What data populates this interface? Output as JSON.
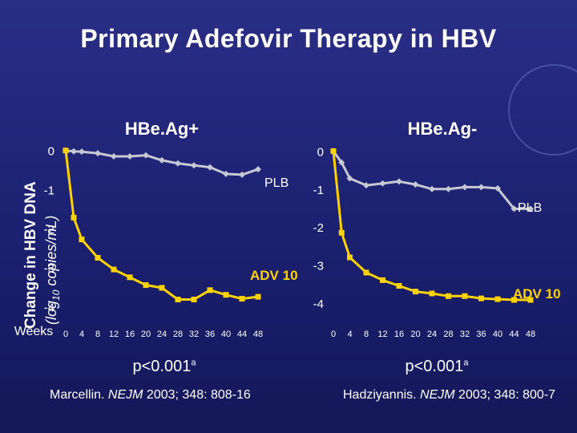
{
  "slide": {
    "title": "Primary Adefovir Therapy in HBV",
    "ylabel_main": "Change in HBV DNA",
    "ylabel_units": "(log",
    "ylabel_units_sub": "10",
    "ylabel_units_tail": " copies/mL)",
    "weeks_label": "Weeks",
    "colors": {
      "background": "#1b2070",
      "plb": "#c8c8d2",
      "adv": "#ffd200",
      "text": "#ffffff"
    }
  },
  "left": {
    "caption": "p<0.001",
    "caption_sup": "a",
    "citation_pre": "Marcellin. ",
    "citation_journal": "NEJM",
    "citation_post": " 2003; 348: 808-16"
  },
  "right": {
    "caption": "p<0.001",
    "caption_sup": "a",
    "citation_pre": "Hadziyannis. ",
    "citation_journal": "NEJM",
    "citation_post": " 2003; 348: 800-7"
  },
  "chart_data": [
    {
      "type": "line",
      "title": "HBe.Ag+",
      "xlabel": "Weeks",
      "ylabel": "Change in HBV DNA (log10 copies/mL)",
      "xlim": [
        0,
        48
      ],
      "ylim": [
        -4.2,
        0.2
      ],
      "xticks": [
        0,
        4,
        8,
        12,
        16,
        20,
        24,
        28,
        32,
        36,
        40,
        44,
        48
      ],
      "yticks": [
        0,
        -1,
        -2,
        -3,
        -4
      ],
      "ytick_labels": [
        "0",
        "-1",
        "-2",
        "-3",
        "-4"
      ],
      "grid": false,
      "legend": "inline labels",
      "series": [
        {
          "name": "PLB",
          "color": "#c8c8d2",
          "marker": "diamond",
          "x": [
            0,
            2,
            4,
            8,
            12,
            16,
            20,
            24,
            28,
            32,
            36,
            40,
            44,
            48
          ],
          "y": [
            0,
            -0.02,
            -0.03,
            -0.07,
            -0.15,
            -0.15,
            -0.12,
            -0.25,
            -0.33,
            -0.38,
            -0.43,
            -0.6,
            -0.62,
            -0.48
          ]
        },
        {
          "name": "ADV 10",
          "color": "#ffd200",
          "marker": "square",
          "x": [
            0,
            2,
            4,
            8,
            12,
            16,
            20,
            24,
            28,
            32,
            36,
            40,
            44,
            48
          ],
          "y": [
            0,
            -1.72,
            -2.28,
            -2.75,
            -3.05,
            -3.25,
            -3.45,
            -3.52,
            -3.82,
            -3.82,
            -3.58,
            -3.7,
            -3.8,
            -3.75
          ]
        }
      ]
    },
    {
      "type": "line",
      "title": "HBe.Ag-",
      "xlabel": "Weeks",
      "ylabel": "",
      "xlim": [
        0,
        48
      ],
      "ylim": [
        -4.3,
        0.2
      ],
      "xticks": [
        0,
        4,
        8,
        12,
        16,
        20,
        24,
        28,
        32,
        36,
        40,
        44,
        48
      ],
      "yticks": [
        0,
        -1,
        -2,
        -3,
        -4
      ],
      "ytick_labels": [
        "0",
        "-1",
        "-2",
        "-3",
        "-4"
      ],
      "grid": false,
      "legend": "inline labels",
      "series": [
        {
          "name": "PLB",
          "color": "#c8c8d2",
          "marker": "diamond",
          "x": [
            0,
            2,
            4,
            8,
            12,
            16,
            20,
            24,
            28,
            32,
            36,
            40,
            44,
            48
          ],
          "y": [
            0,
            -0.3,
            -0.72,
            -0.9,
            -0.85,
            -0.8,
            -0.88,
            -1.0,
            -1.0,
            -0.95,
            -0.95,
            -0.98,
            -1.52,
            -1.52
          ]
        },
        {
          "name": "ADV 10",
          "color": "#ffd200",
          "marker": "square",
          "x": [
            0,
            2,
            4,
            8,
            12,
            16,
            20,
            24,
            28,
            32,
            36,
            40,
            44,
            48
          ],
          "y": [
            0,
            -2.15,
            -2.8,
            -3.2,
            -3.4,
            -3.55,
            -3.7,
            -3.75,
            -3.82,
            -3.82,
            -3.88,
            -3.9,
            -3.92,
            -3.92
          ]
        }
      ]
    }
  ]
}
